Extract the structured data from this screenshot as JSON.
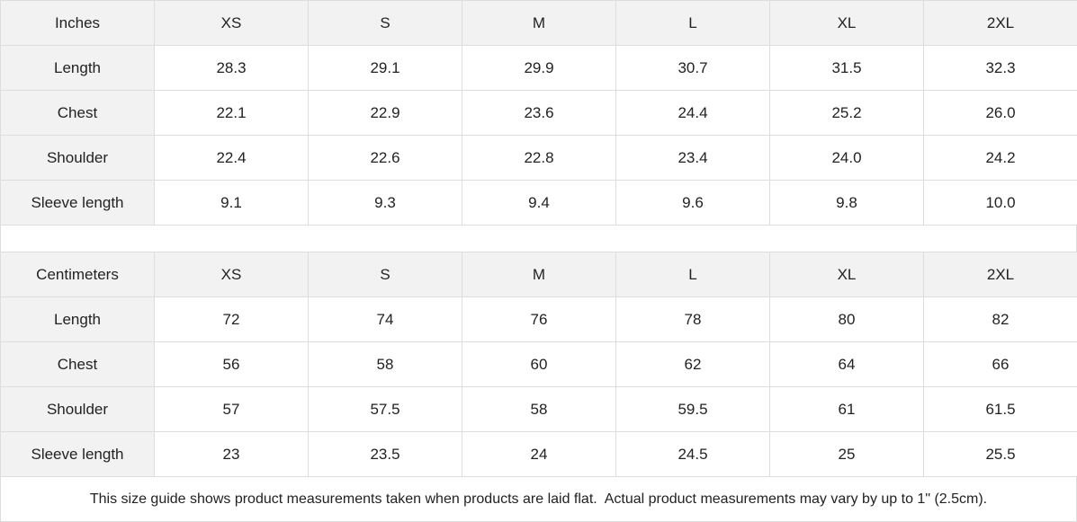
{
  "tables": [
    {
      "unit_label": "Inches",
      "sizes": [
        "XS",
        "S",
        "M",
        "L",
        "XL",
        "2XL"
      ],
      "rows": [
        {
          "label": "Length",
          "values": [
            "28.3",
            "29.1",
            "29.9",
            "30.7",
            "31.5",
            "32.3"
          ]
        },
        {
          "label": "Chest",
          "values": [
            "22.1",
            "22.9",
            "23.6",
            "24.4",
            "25.2",
            "26.0"
          ]
        },
        {
          "label": "Shoulder",
          "values": [
            "22.4",
            "22.6",
            "22.8",
            "23.4",
            "24.0",
            "24.2"
          ]
        },
        {
          "label": "Sleeve length",
          "values": [
            "9.1",
            "9.3",
            "9.4",
            "9.6",
            "9.8",
            "10.0"
          ]
        }
      ]
    },
    {
      "unit_label": "Centimeters",
      "sizes": [
        "XS",
        "S",
        "M",
        "L",
        "XL",
        "2XL"
      ],
      "rows": [
        {
          "label": "Length",
          "values": [
            "72",
            "74",
            "76",
            "78",
            "80",
            "82"
          ]
        },
        {
          "label": "Chest",
          "values": [
            "56",
            "58",
            "60",
            "62",
            "64",
            "66"
          ]
        },
        {
          "label": "Shoulder",
          "values": [
            "57",
            "57.5",
            "58",
            "59.5",
            "61",
            "61.5"
          ]
        },
        {
          "label": "Sleeve length",
          "values": [
            "23",
            "23.5",
            "24",
            "24.5",
            "25",
            "25.5"
          ]
        }
      ]
    }
  ],
  "note": "This size guide shows product measurements taken when products are laid flat.  Actual product measurements may vary by up to 1\" (2.5cm)."
}
